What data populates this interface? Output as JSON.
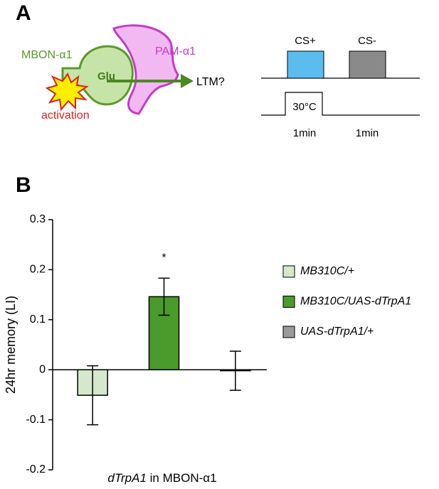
{
  "diagram": {
    "panel_label": "A",
    "mbon": "MBON-α1",
    "pam": "PAM-α1",
    "transmitter": "Glu",
    "output": "LTM?",
    "stimulus": "activation",
    "cs_plus": "CS+",
    "cs_minus": "CS-",
    "temperature": "30°C",
    "durations": [
      "1min",
      "1min"
    ]
  },
  "chart_data": {
    "type": "bar",
    "panel_label": "B",
    "ylabel": "24hr memory (LI)",
    "xlabel": [
      "dTrpA1",
      "in MBON-α1"
    ],
    "annotation": "*",
    "categories": [
      null
    ],
    "series": [
      {
        "name": "MB310C/+",
        "color": "#d6e8cc",
        "values": [
          -0.051
        ],
        "errors": [
          0.059
        ]
      },
      {
        "name": "MB310C/UAS-dTrpA1",
        "color": "#4a9a2c",
        "values": [
          0.146
        ],
        "errors": [
          0.037
        ]
      },
      {
        "name": "UAS-dTrpA1/+",
        "color": "#9a9a9a",
        "values": [
          -0.002
        ],
        "errors": [
          0.039
        ]
      }
    ],
    "ylim": [
      -0.2,
      0.3
    ],
    "yticks": [
      -0.2,
      -0.1,
      0,
      0.1,
      0.2,
      0.3
    ],
    "grid": false,
    "legend": "right"
  }
}
